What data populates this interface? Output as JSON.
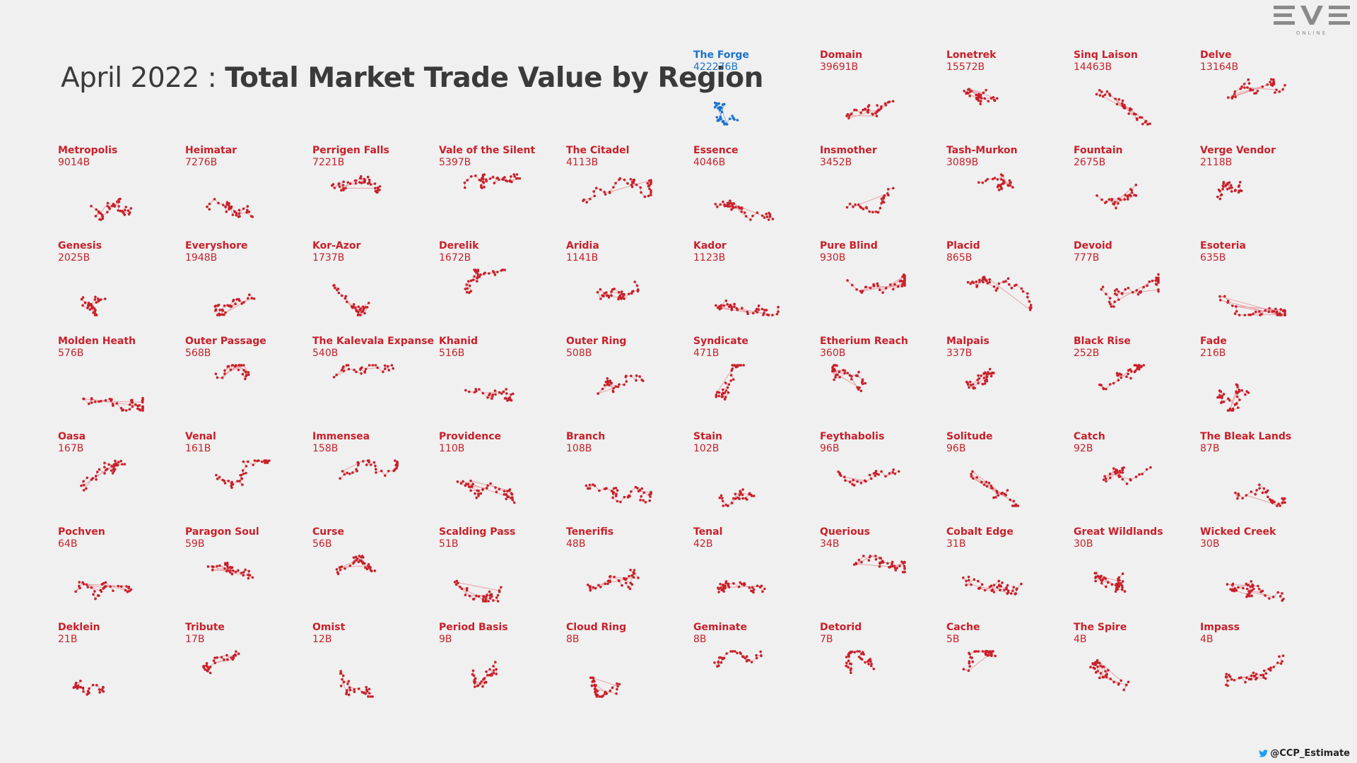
{
  "header": {
    "title_prefix": "April 2022 : ",
    "title_main": "Total Market Trade Value by Region"
  },
  "logo": {
    "icon": "eve-online-logo",
    "text": "EVE",
    "subtext": "ONLINE"
  },
  "credit": {
    "icon": "twitter-icon",
    "text": "@CCP_Estimate"
  },
  "colors": {
    "default": "#c8202a",
    "highlight": "#1a73c9",
    "link": "#e8a0a4"
  },
  "chart_data": {
    "type": "small-multiples",
    "title": "April 2022 : Total Market Trade Value by Region",
    "unit": "B",
    "highlighted": "The Forge",
    "regions": [
      {
        "name": "The Forge",
        "value": "422276B"
      },
      {
        "name": "Domain",
        "value": "39691B"
      },
      {
        "name": "Lonetrek",
        "value": "15572B"
      },
      {
        "name": "Sinq Laison",
        "value": "14463B"
      },
      {
        "name": "Delve",
        "value": "13164B"
      },
      {
        "name": "Metropolis",
        "value": "9014B"
      },
      {
        "name": "Heimatar",
        "value": "7276B"
      },
      {
        "name": "Perrigen Falls",
        "value": "7221B"
      },
      {
        "name": "Vale of the Silent",
        "value": "5397B"
      },
      {
        "name": "The Citadel",
        "value": "4113B"
      },
      {
        "name": "Essence",
        "value": "4046B"
      },
      {
        "name": "Insmother",
        "value": "3452B"
      },
      {
        "name": "Tash-Murkon",
        "value": "3089B"
      },
      {
        "name": "Fountain",
        "value": "2675B"
      },
      {
        "name": "Verge Vendor",
        "value": "2118B"
      },
      {
        "name": "Genesis",
        "value": "2025B"
      },
      {
        "name": "Everyshore",
        "value": "1948B"
      },
      {
        "name": "Kor-Azor",
        "value": "1737B"
      },
      {
        "name": "Derelik",
        "value": "1672B"
      },
      {
        "name": "Aridia",
        "value": "1141B"
      },
      {
        "name": "Kador",
        "value": "1123B"
      },
      {
        "name": "Pure Blind",
        "value": "930B"
      },
      {
        "name": "Placid",
        "value": "865B"
      },
      {
        "name": "Devoid",
        "value": "777B"
      },
      {
        "name": "Esoteria",
        "value": "635B"
      },
      {
        "name": "Molden Heath",
        "value": "576B"
      },
      {
        "name": "Outer Passage",
        "value": "568B"
      },
      {
        "name": "The Kalevala Expanse",
        "value": "540B"
      },
      {
        "name": "Khanid",
        "value": "516B"
      },
      {
        "name": "Outer Ring",
        "value": "508B"
      },
      {
        "name": "Syndicate",
        "value": "471B"
      },
      {
        "name": "Etherium Reach",
        "value": "360B"
      },
      {
        "name": "Malpais",
        "value": "337B"
      },
      {
        "name": "Black Rise",
        "value": "252B"
      },
      {
        "name": "Fade",
        "value": "216B"
      },
      {
        "name": "Oasa",
        "value": "167B"
      },
      {
        "name": "Venal",
        "value": "161B"
      },
      {
        "name": "Immensea",
        "value": "158B"
      },
      {
        "name": "Providence",
        "value": "110B"
      },
      {
        "name": "Branch",
        "value": "108B"
      },
      {
        "name": "Stain",
        "value": "102B"
      },
      {
        "name": "Feythabolis",
        "value": "96B"
      },
      {
        "name": "Solitude",
        "value": "96B"
      },
      {
        "name": "Catch",
        "value": "92B"
      },
      {
        "name": "The Bleak Lands",
        "value": "87B"
      },
      {
        "name": "Pochven",
        "value": "64B"
      },
      {
        "name": "Paragon Soul",
        "value": "59B"
      },
      {
        "name": "Curse",
        "value": "56B"
      },
      {
        "name": "Scalding Pass",
        "value": "51B"
      },
      {
        "name": "Tenerifis",
        "value": "48B"
      },
      {
        "name": "Tenal",
        "value": "42B"
      },
      {
        "name": "Querious",
        "value": "34B"
      },
      {
        "name": "Cobalt Edge",
        "value": "31B"
      },
      {
        "name": "Great Wildlands",
        "value": "30B"
      },
      {
        "name": "Wicked Creek",
        "value": "30B"
      },
      {
        "name": "Deklein",
        "value": "21B"
      },
      {
        "name": "Tribute",
        "value": "17B"
      },
      {
        "name": "Omist",
        "value": "12B"
      },
      {
        "name": "Period Basis",
        "value": "9B"
      },
      {
        "name": "Cloud Ring",
        "value": "8B"
      },
      {
        "name": "Geminate",
        "value": "8B"
      },
      {
        "name": "Detorid",
        "value": "7B"
      },
      {
        "name": "Cache",
        "value": "5B"
      },
      {
        "name": "The Spire",
        "value": "4B"
      },
      {
        "name": "Impass",
        "value": "4B"
      }
    ]
  }
}
